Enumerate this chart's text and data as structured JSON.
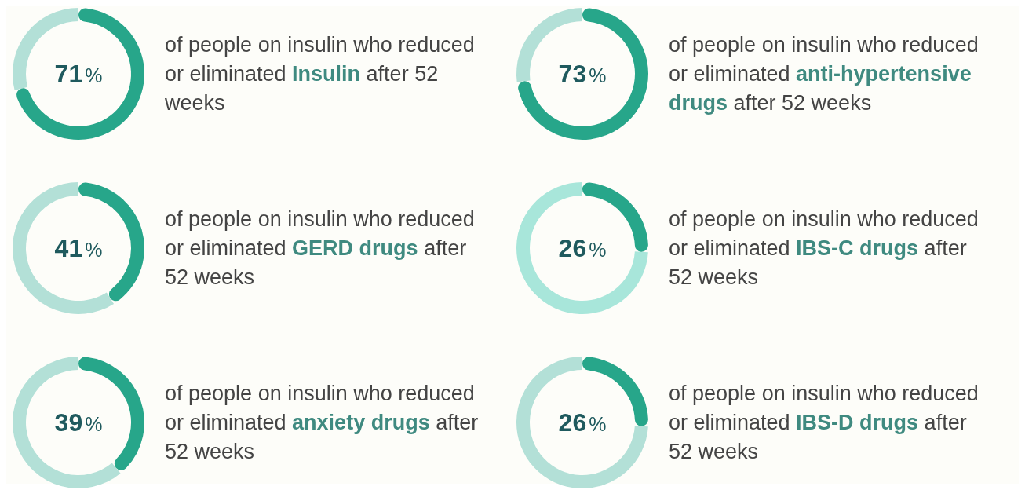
{
  "chart_data": [
    {
      "type": "donut",
      "categories": [
        null,
        null
      ],
      "values": [
        71,
        29
      ],
      "colors": [
        "#27a68a",
        "#b3e0d7"
      ],
      "value_labels": [
        "71%",
        null
      ],
      "annotations": [
        "of people on insulin who reduced or eliminated",
        "Insulin",
        "after 52 weeks"
      ]
    },
    {
      "type": "donut",
      "categories": [
        null,
        null
      ],
      "values": [
        73,
        27
      ],
      "colors": [
        "#27a68a",
        "#b3e0d7"
      ],
      "value_labels": [
        "73%",
        null
      ],
      "annotations": [
        "of people on insulin who reduced or eliminated",
        "anti-hypertensive drugs",
        "after 52 weeks"
      ]
    },
    {
      "type": "donut",
      "categories": [
        null,
        null
      ],
      "values": [
        41,
        59
      ],
      "colors": [
        "#27a68a",
        "#b3e0d7"
      ],
      "value_labels": [
        "41%",
        null
      ],
      "annotations": [
        "of people on insulin who reduced or eliminated",
        "GERD drugs",
        "after 52 weeks"
      ]
    },
    {
      "type": "donut",
      "categories": [
        null,
        null
      ],
      "values": [
        26,
        74
      ],
      "colors": [
        "#27a68a",
        "#a8e6da"
      ],
      "value_labels": [
        "26%",
        null
      ],
      "annotations": [
        "of people on insulin who reduced or eliminated",
        "IBS-C drugs",
        "after 52 weeks"
      ]
    },
    {
      "type": "donut",
      "categories": [
        null,
        null
      ],
      "values": [
        39,
        61
      ],
      "colors": [
        "#27a68a",
        "#b3e0d7"
      ],
      "value_labels": [
        "39%",
        null
      ],
      "annotations": [
        "of people on insulin who reduced or eliminated",
        "anxiety drugs",
        "after 52 weeks"
      ]
    },
    {
      "type": "donut",
      "categories": [
        null,
        null
      ],
      "values": [
        26,
        74
      ],
      "colors": [
        "#27a68a",
        "#b3e0d7"
      ],
      "value_labels": [
        "26%",
        null
      ],
      "annotations": [
        "of people on insulin who reduced or eliminated",
        "IBS-D drugs",
        "after 52 weeks"
      ]
    }
  ]
}
